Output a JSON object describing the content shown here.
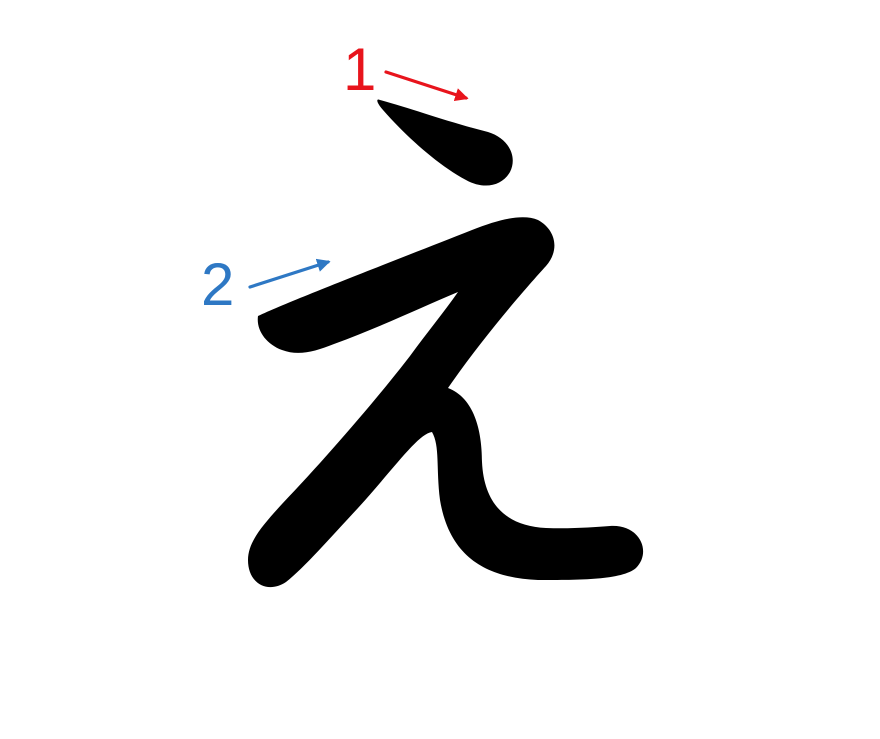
{
  "diagram": {
    "glyph_color": "#000000",
    "strokes": [
      {
        "number": "1",
        "color": "#e8141c"
      },
      {
        "number": "2",
        "color": "#2e78c4"
      }
    ]
  }
}
